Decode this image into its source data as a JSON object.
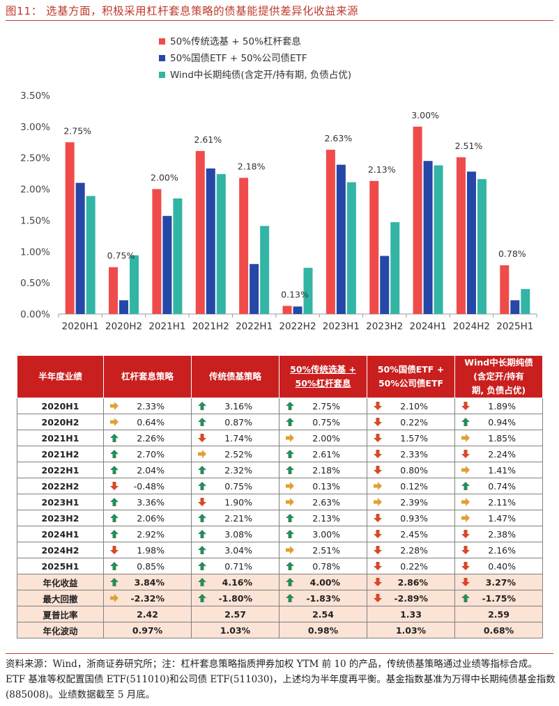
{
  "figure_title": "图11：  选基方面，积极采用杠杆套息策略的债基能提供差异化收益来源",
  "chart_data": {
    "type": "bar",
    "categories": [
      "2020H1",
      "2020H2",
      "2021H1",
      "2021H2",
      "2022H1",
      "2022H2",
      "2023H1",
      "2023H2",
      "2024H1",
      "2024H2",
      "2025H1"
    ],
    "series": [
      {
        "name": "50%传统选基 + 50%杠杆套息",
        "color": "#f04b4b",
        "values": [
          2.75,
          0.75,
          2.0,
          2.61,
          2.18,
          0.13,
          2.63,
          2.13,
          3.0,
          2.51,
          0.78
        ]
      },
      {
        "name": "50%国债ETF + 50%公司债ETF",
        "color": "#2547a8",
        "values": [
          2.1,
          0.22,
          1.57,
          2.33,
          0.8,
          0.12,
          2.39,
          0.93,
          2.45,
          2.28,
          0.22
        ]
      },
      {
        "name": "Wind中长期纯债(含定开/持有期, 负债占优)",
        "color": "#33b5a5",
        "values": [
          1.89,
          0.94,
          1.85,
          2.24,
          1.41,
          0.74,
          2.11,
          1.47,
          2.38,
          2.16,
          0.4
        ]
      }
    ],
    "data_labels": [
      "2.75%",
      "0.75%",
      "2.00%",
      "2.61%",
      "2.18%",
      "0.13%",
      "2.63%",
      "2.13%",
      "3.00%",
      "2.51%",
      "0.78%"
    ],
    "y_ticks": [
      "0.00%",
      "0.50%",
      "1.00%",
      "1.50%",
      "2.00%",
      "2.50%",
      "3.00%",
      "3.50%"
    ],
    "ylim": [
      0,
      3.5
    ],
    "legend_position": "top-left",
    "grid": false
  },
  "table": {
    "headers": [
      "半年度业绩",
      "杠杆套息策略",
      "传统债基策略",
      "50%传统选基 +\n50%杠杆套息",
      "50%国债ETF +\n50%公司债ETF",
      "Wind中长期纯债\n(含定开/持有\n期, 负债占优)"
    ],
    "rows": [
      {
        "label": "2020H1",
        "cells": [
          [
            "right",
            "2.33%"
          ],
          [
            "up",
            "3.16%"
          ],
          [
            "up",
            "2.75%"
          ],
          [
            "down",
            "2.10%"
          ],
          [
            "down",
            "1.89%"
          ]
        ]
      },
      {
        "label": "2020H2",
        "cells": [
          [
            "right",
            "0.64%"
          ],
          [
            "up",
            "0.87%"
          ],
          [
            "up",
            "0.75%"
          ],
          [
            "down",
            "0.22%"
          ],
          [
            "up",
            "0.94%"
          ]
        ]
      },
      {
        "label": "2021H1",
        "cells": [
          [
            "up",
            "2.26%"
          ],
          [
            "down",
            "1.74%"
          ],
          [
            "right",
            "2.00%"
          ],
          [
            "down",
            "1.57%"
          ],
          [
            "right",
            "1.85%"
          ]
        ]
      },
      {
        "label": "2021H2",
        "cells": [
          [
            "up",
            "2.70%"
          ],
          [
            "right",
            "2.52%"
          ],
          [
            "up",
            "2.61%"
          ],
          [
            "down",
            "2.33%"
          ],
          [
            "down",
            "2.24%"
          ]
        ]
      },
      {
        "label": "2022H1",
        "cells": [
          [
            "up",
            "2.04%"
          ],
          [
            "up",
            "2.32%"
          ],
          [
            "up",
            "2.18%"
          ],
          [
            "down",
            "0.80%"
          ],
          [
            "right",
            "1.41%"
          ]
        ]
      },
      {
        "label": "2022H2",
        "cells": [
          [
            "down",
            "-0.48%"
          ],
          [
            "up",
            "0.75%"
          ],
          [
            "right",
            "0.13%"
          ],
          [
            "right",
            "0.12%"
          ],
          [
            "up",
            "0.74%"
          ]
        ]
      },
      {
        "label": "2023H1",
        "cells": [
          [
            "up",
            "3.36%"
          ],
          [
            "down",
            "1.90%"
          ],
          [
            "right",
            "2.63%"
          ],
          [
            "right",
            "2.39%"
          ],
          [
            "right",
            "2.11%"
          ]
        ]
      },
      {
        "label": "2023H2",
        "cells": [
          [
            "up",
            "2.06%"
          ],
          [
            "up",
            "2.21%"
          ],
          [
            "up",
            "2.13%"
          ],
          [
            "down",
            "0.93%"
          ],
          [
            "right",
            "1.47%"
          ]
        ]
      },
      {
        "label": "2024H1",
        "cells": [
          [
            "up",
            "2.92%"
          ],
          [
            "up",
            "3.08%"
          ],
          [
            "up",
            "3.00%"
          ],
          [
            "down",
            "2.45%"
          ],
          [
            "down",
            "2.38%"
          ]
        ]
      },
      {
        "label": "2024H2",
        "cells": [
          [
            "down",
            "1.98%"
          ],
          [
            "up",
            "3.04%"
          ],
          [
            "right",
            "2.51%"
          ],
          [
            "down",
            "2.28%"
          ],
          [
            "down",
            "2.16%"
          ]
        ]
      },
      {
        "label": "2025H1",
        "cells": [
          [
            "up",
            "0.85%"
          ],
          [
            "up",
            "0.71%"
          ],
          [
            "up",
            "0.78%"
          ],
          [
            "down",
            "0.22%"
          ],
          [
            "down",
            "0.40%"
          ]
        ]
      }
    ],
    "summary": [
      {
        "label": "年化收益",
        "cells": [
          [
            "up",
            "3.84%"
          ],
          [
            "up",
            "4.16%"
          ],
          [
            "up",
            "4.00%"
          ],
          [
            "down",
            "2.86%"
          ],
          [
            "down",
            "3.27%"
          ]
        ]
      },
      {
        "label": "最大回撤",
        "cells": [
          [
            "right",
            "-2.32%"
          ],
          [
            "up",
            "-1.80%"
          ],
          [
            "up",
            "-1.83%"
          ],
          [
            "down",
            "-2.89%"
          ],
          [
            "up",
            "-1.75%"
          ]
        ]
      },
      {
        "label": "夏普比率",
        "cells": [
          [
            null,
            "2.42"
          ],
          [
            null,
            "2.57"
          ],
          [
            null,
            "2.54"
          ],
          [
            null,
            "1.33"
          ],
          [
            null,
            "2.59"
          ]
        ]
      },
      {
        "label": "年化波动",
        "cells": [
          [
            null,
            "0.97%"
          ],
          [
            null,
            "1.03%"
          ],
          [
            null,
            "0.98%"
          ],
          [
            null,
            "1.03%"
          ],
          [
            null,
            "0.68%"
          ]
        ]
      }
    ]
  },
  "arrow_colors": {
    "up": "#2e8b57",
    "down": "#d9472b",
    "right": "#e0a030"
  },
  "icons": {
    "up": "arrow-up-icon",
    "down": "arrow-down-icon",
    "right": "arrow-right-icon"
  },
  "note": "资料来源：Wind，浙商证券研究所；注：杠杆套息策略指质押券加权 YTM 前 10 的产品，传统债基策略通过业绩等指标合成。ETF 基准等权配置国债 ETF(511010)和公司债 ETF(511030)，上述均为半年度再平衡。基金指数基准为万得中长期纯债基金指数(885008)。业绩数据截至 5 月底。"
}
